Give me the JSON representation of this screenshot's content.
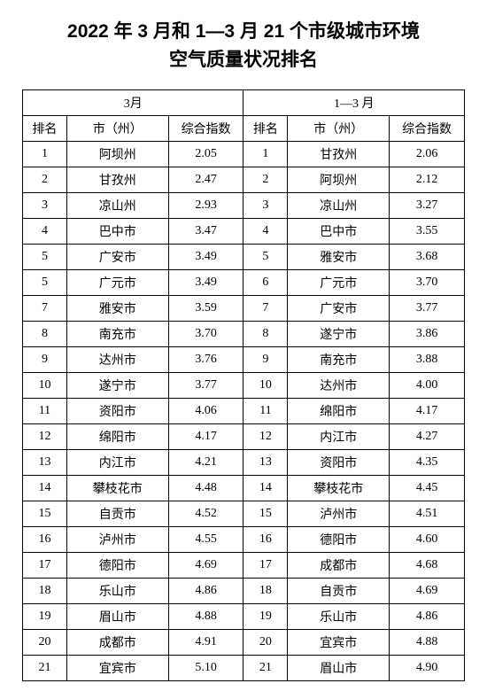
{
  "title_line1": "2022 年 3 月和 1—3 月 21 个市级城市环境",
  "title_line2": "空气质量状况排名",
  "group_left": "3月",
  "group_right": "1—3 月",
  "col_rank": "排名",
  "col_city": "市（州）",
  "col_index": "综合指数",
  "rows": [
    {
      "lr": "1",
      "lc": "阿坝州",
      "li": "2.05",
      "rr": "1",
      "rc": "甘孜州",
      "ri": "2.06"
    },
    {
      "lr": "2",
      "lc": "甘孜州",
      "li": "2.47",
      "rr": "2",
      "rc": "阿坝州",
      "ri": "2.12"
    },
    {
      "lr": "3",
      "lc": "凉山州",
      "li": "2.93",
      "rr": "3",
      "rc": "凉山州",
      "ri": "3.27"
    },
    {
      "lr": "4",
      "lc": "巴中市",
      "li": "3.47",
      "rr": "4",
      "rc": "巴中市",
      "ri": "3.55"
    },
    {
      "lr": "5",
      "lc": "广安市",
      "li": "3.49",
      "rr": "5",
      "rc": "雅安市",
      "ri": "3.68"
    },
    {
      "lr": "5",
      "lc": "广元市",
      "li": "3.49",
      "rr": "6",
      "rc": "广元市",
      "ri": "3.70"
    },
    {
      "lr": "7",
      "lc": "雅安市",
      "li": "3.59",
      "rr": "7",
      "rc": "广安市",
      "ri": "3.77"
    },
    {
      "lr": "8",
      "lc": "南充市",
      "li": "3.70",
      "rr": "8",
      "rc": "遂宁市",
      "ri": "3.86"
    },
    {
      "lr": "9",
      "lc": "达州市",
      "li": "3.76",
      "rr": "9",
      "rc": "南充市",
      "ri": "3.88"
    },
    {
      "lr": "10",
      "lc": "遂宁市",
      "li": "3.77",
      "rr": "10",
      "rc": "达州市",
      "ri": "4.00"
    },
    {
      "lr": "11",
      "lc": "资阳市",
      "li": "4.06",
      "rr": "11",
      "rc": "绵阳市",
      "ri": "4.17"
    },
    {
      "lr": "12",
      "lc": "绵阳市",
      "li": "4.17",
      "rr": "12",
      "rc": "内江市",
      "ri": "4.27"
    },
    {
      "lr": "13",
      "lc": "内江市",
      "li": "4.21",
      "rr": "13",
      "rc": "资阳市",
      "ri": "4.35"
    },
    {
      "lr": "14",
      "lc": "攀枝花市",
      "li": "4.48",
      "rr": "14",
      "rc": "攀枝花市",
      "ri": "4.45"
    },
    {
      "lr": "15",
      "lc": "自贡市",
      "li": "4.52",
      "rr": "15",
      "rc": "泸州市",
      "ri": "4.51"
    },
    {
      "lr": "16",
      "lc": "泸州市",
      "li": "4.55",
      "rr": "16",
      "rc": "德阳市",
      "ri": "4.60"
    },
    {
      "lr": "17",
      "lc": "德阳市",
      "li": "4.69",
      "rr": "17",
      "rc": "成都市",
      "ri": "4.68"
    },
    {
      "lr": "18",
      "lc": "乐山市",
      "li": "4.86",
      "rr": "18",
      "rc": "自贡市",
      "ri": "4.69"
    },
    {
      "lr": "19",
      "lc": "眉山市",
      "li": "4.88",
      "rr": "19",
      "rc": "乐山市",
      "ri": "4.86"
    },
    {
      "lr": "20",
      "lc": "成都市",
      "li": "4.91",
      "rr": "20",
      "rc": "宜宾市",
      "ri": "4.88"
    },
    {
      "lr": "21",
      "lc": "宜宾市",
      "li": "5.10",
      "rr": "21",
      "rc": "眉山市",
      "ri": "4.90"
    }
  ]
}
